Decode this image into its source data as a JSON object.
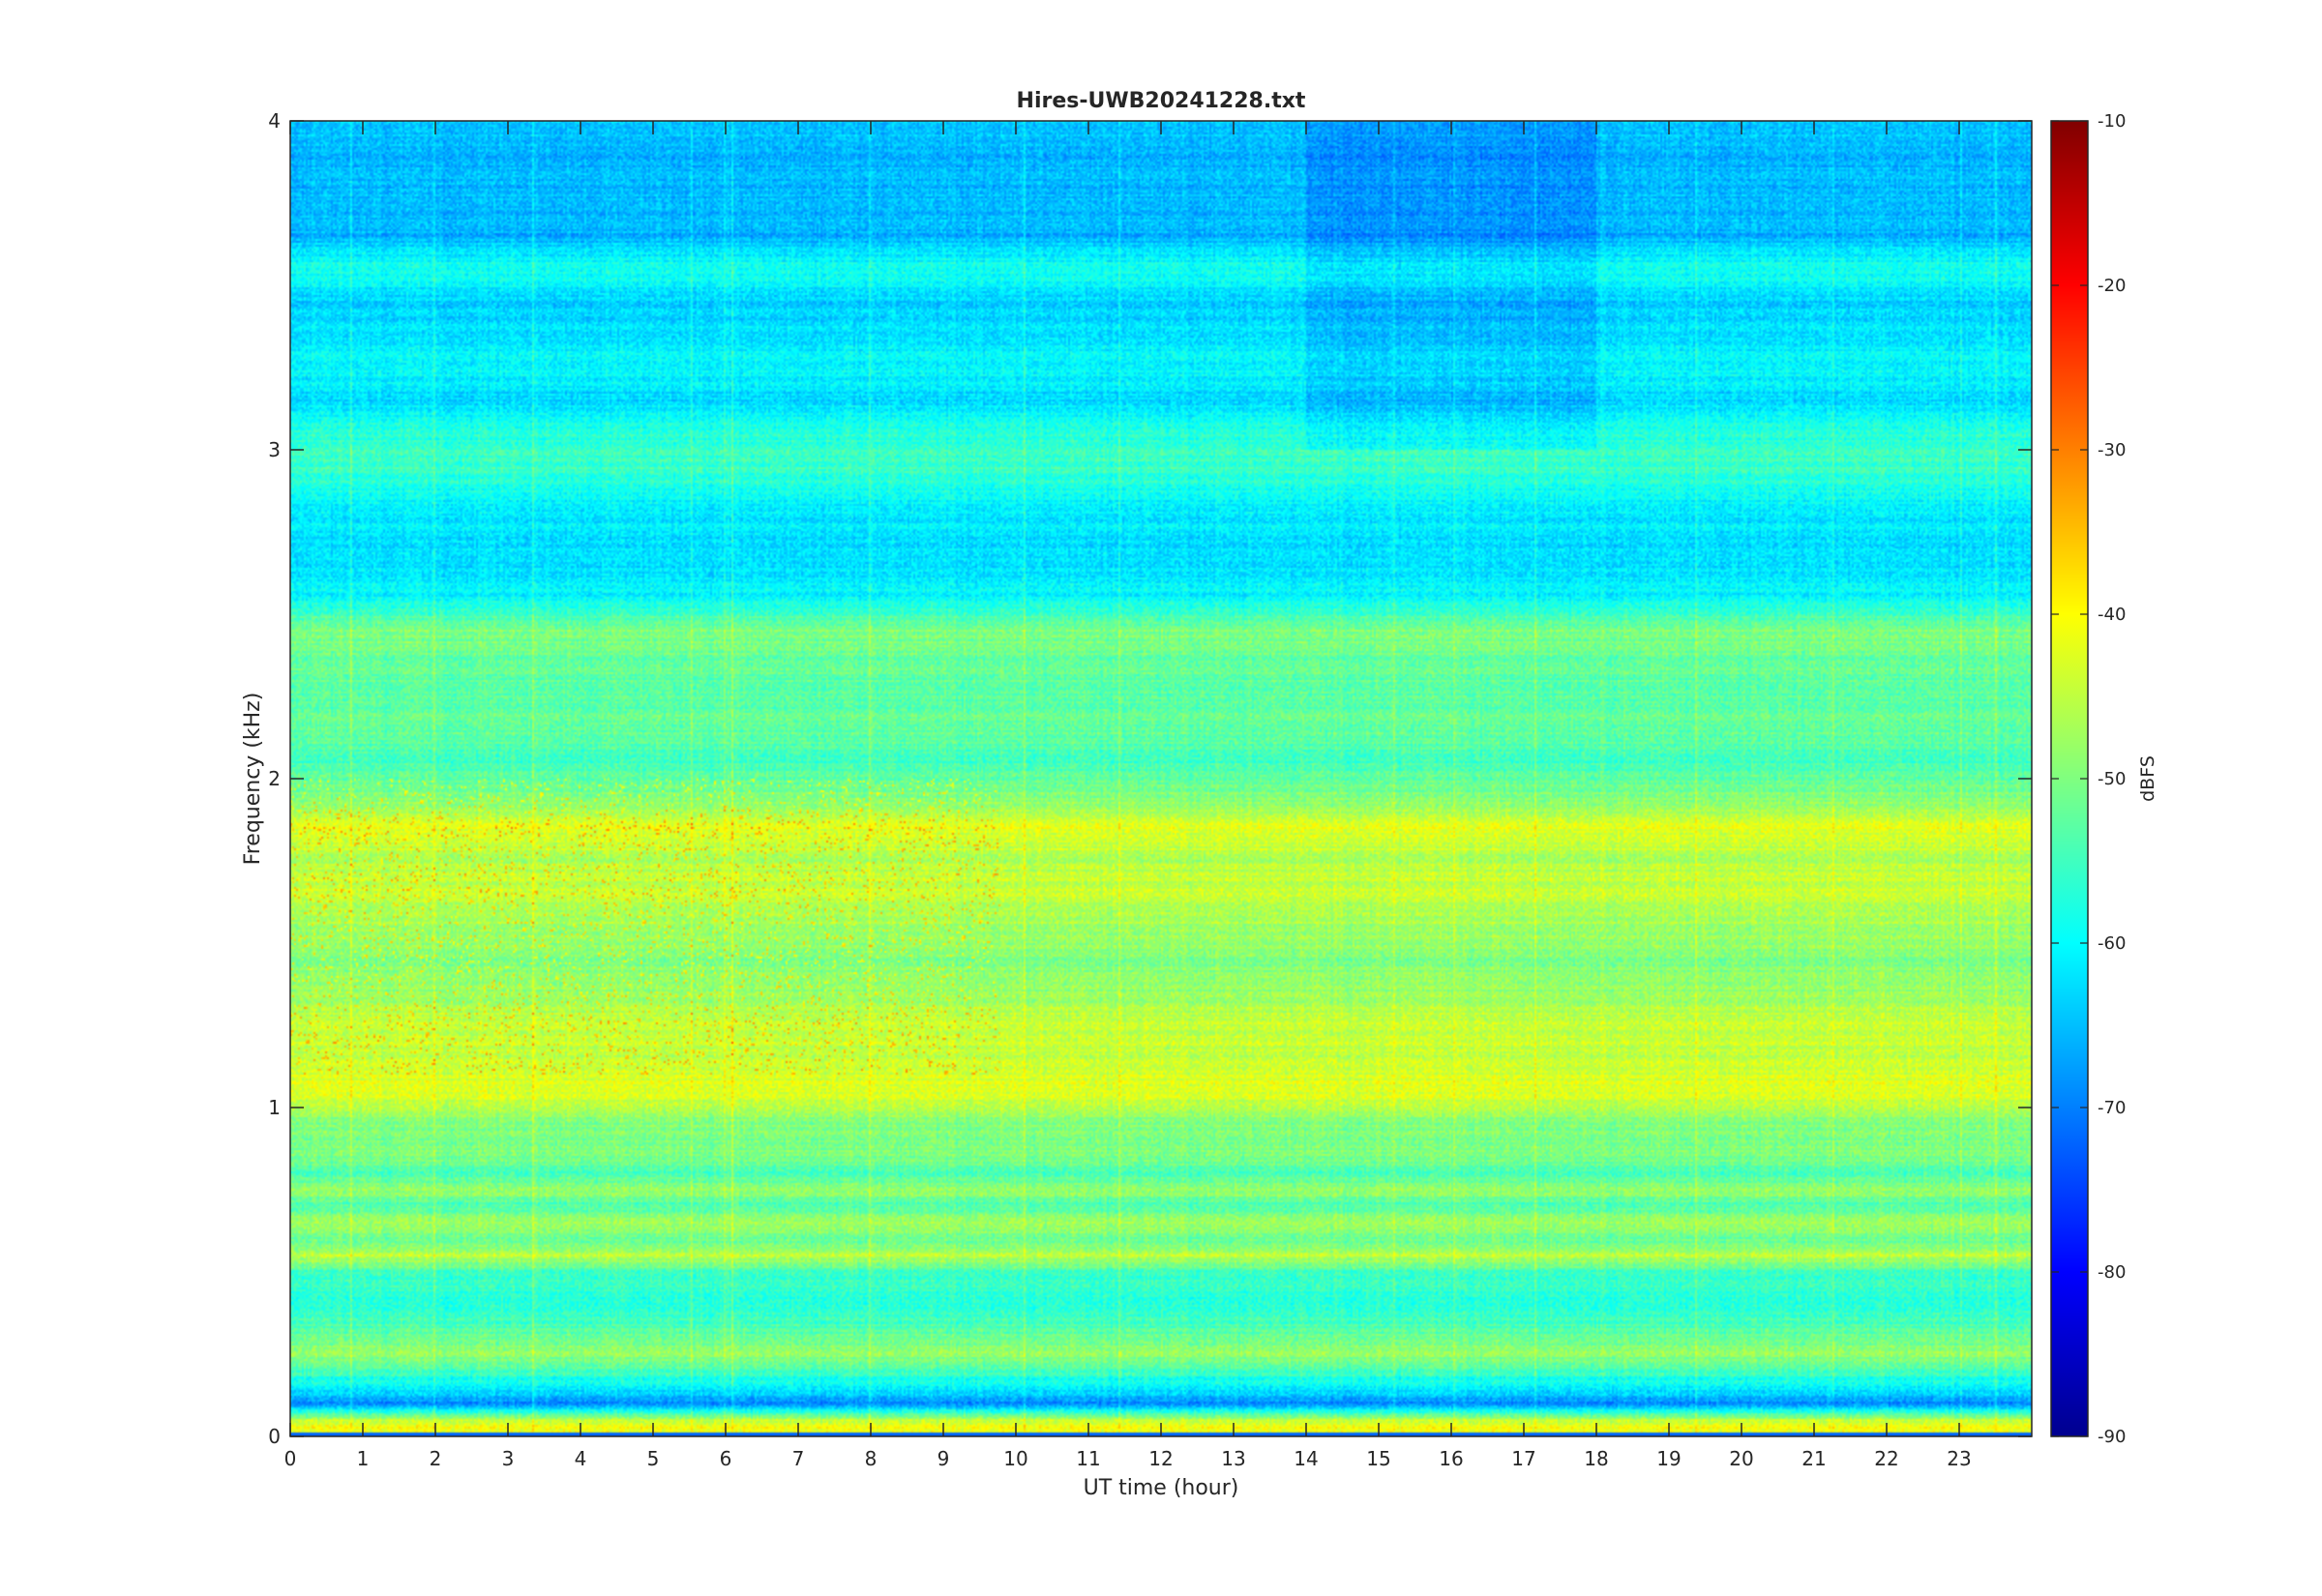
{
  "chart_data": {
    "type": "heatmap",
    "title": "Hires-UWB20241228.txt",
    "xlabel": "UT time (hour)",
    "ylabel": "Frequency (kHz)",
    "xlim": [
      0,
      24
    ],
    "ylim": [
      0,
      4
    ],
    "x_ticks": [
      "0",
      "1",
      "2",
      "3",
      "4",
      "5",
      "6",
      "7",
      "8",
      "9",
      "10",
      "11",
      "12",
      "13",
      "14",
      "15",
      "16",
      "17",
      "18",
      "19",
      "20",
      "21",
      "22",
      "23"
    ],
    "y_ticks": [
      "0",
      "1",
      "2",
      "3",
      "4"
    ],
    "colorbar": {
      "label": "dBFS",
      "range": [
        -90,
        -10
      ],
      "ticks": [
        "-10",
        "-20",
        "-30",
        "-40",
        "-50",
        "-60",
        "-70",
        "-80",
        "-90"
      ],
      "colormap": "jet"
    },
    "grid": false,
    "frequency_profile_khz_dbfs": [
      [
        0.02,
        -40
      ],
      [
        0.05,
        -45
      ],
      [
        0.1,
        -70
      ],
      [
        0.15,
        -60
      ],
      [
        0.2,
        -55
      ],
      [
        0.25,
        -48
      ],
      [
        0.3,
        -52
      ],
      [
        0.35,
        -55
      ],
      [
        0.4,
        -58
      ],
      [
        0.5,
        -55
      ],
      [
        0.55,
        -45
      ],
      [
        0.6,
        -52
      ],
      [
        0.65,
        -47
      ],
      [
        0.7,
        -55
      ],
      [
        0.75,
        -47
      ],
      [
        0.8,
        -55
      ],
      [
        0.85,
        -50
      ],
      [
        0.95,
        -50
      ],
      [
        1.05,
        -42
      ],
      [
        1.15,
        -45
      ],
      [
        1.25,
        -44
      ],
      [
        1.35,
        -48
      ],
      [
        1.45,
        -50
      ],
      [
        1.55,
        -47
      ],
      [
        1.65,
        -44
      ],
      [
        1.75,
        -46
      ],
      [
        1.85,
        -42
      ],
      [
        1.95,
        -50
      ],
      [
        2.05,
        -55
      ],
      [
        2.15,
        -52
      ],
      [
        2.25,
        -53
      ],
      [
        2.35,
        -52
      ],
      [
        2.45,
        -50
      ],
      [
        2.55,
        -60
      ],
      [
        2.65,
        -62
      ],
      [
        2.75,
        -62
      ],
      [
        2.85,
        -60
      ],
      [
        2.95,
        -55
      ],
      [
        3.05,
        -57
      ],
      [
        3.15,
        -63
      ],
      [
        3.25,
        -60
      ],
      [
        3.35,
        -62
      ],
      [
        3.45,
        -64
      ],
      [
        3.55,
        -58
      ],
      [
        3.65,
        -66
      ],
      [
        3.75,
        -65
      ],
      [
        3.85,
        -66
      ],
      [
        3.95,
        -65
      ]
    ]
  }
}
